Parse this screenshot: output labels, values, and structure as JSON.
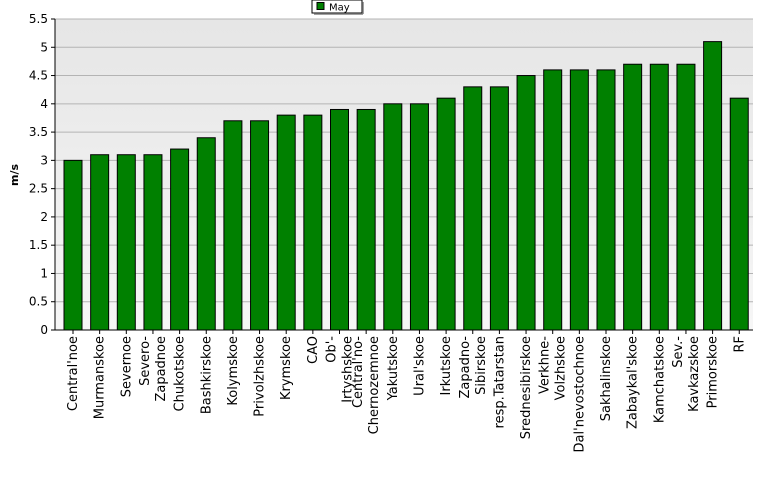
{
  "chart_data": {
    "type": "bar",
    "ylabel": "m/s",
    "xlabel": "",
    "ylim": [
      0,
      5.5
    ],
    "yticks": [
      "0",
      "0.5",
      "1",
      "1.5",
      "2",
      "2.5",
      "3",
      "3.5",
      "4",
      "4.5",
      "5",
      "5.5"
    ],
    "grid": true,
    "legend_position": "top-center",
    "categories": [
      "Central'noe",
      "Murmanskoe",
      "Severnoe",
      "Severo-\nZapadnoe",
      "Chukotskoe",
      "Bashkirskoe",
      "Kolymskoe",
      "Privolzhskoe",
      "Krymskoe",
      "CAO",
      "Ob'-\nIrtyshskoe",
      "Central'no-\nChernozemnoe",
      "Yakutskoe",
      "Ural'skoe",
      "Irkutskoe",
      "Zapadno-\nSibirskoe",
      "resp.Tatarstan",
      "Srednesibirskoe",
      "Verkhne-\nVolzhskoe",
      "Dal'nevostochnoe",
      "Sakhalinskoe",
      "Zabaykal'skoe",
      "Kamchatskoe",
      "Sev.-\nKavkazskoe",
      "Primorskoe",
      "RF"
    ],
    "series": [
      {
        "name": "May",
        "color": "#008000",
        "values": [
          3.0,
          3.1,
          3.1,
          3.1,
          3.2,
          3.4,
          3.7,
          3.7,
          3.8,
          3.8,
          3.9,
          3.9,
          4.0,
          4.0,
          4.1,
          4.3,
          4.3,
          4.5,
          4.6,
          4.6,
          4.6,
          4.7,
          4.7,
          4.7,
          5.1,
          4.1
        ]
      }
    ],
    "colors": {
      "plot_background": "#ebebeb",
      "bar": "#008000",
      "gridline": "#b4b4b4"
    }
  }
}
